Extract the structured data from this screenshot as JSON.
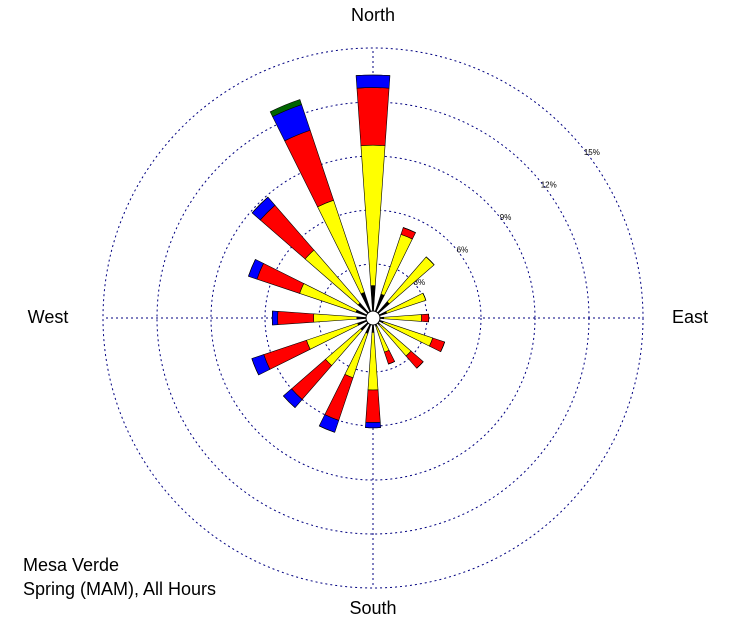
{
  "chart_data": {
    "type": "windrose",
    "categories": [
      "North",
      null,
      null,
      null,
      "East",
      null,
      null,
      null,
      "South",
      null,
      null,
      null,
      "West",
      null,
      null,
      null
    ],
    "series": [
      {
        "color": "#000000",
        "values": [
          1.8,
          1.4,
          1.2,
          0.8,
          0.6,
          0.6,
          0.5,
          0.5,
          0.8,
          0.9,
          0.9,
          0.9,
          0.9,
          1.0,
          1.1,
          1.5
        ]
      },
      {
        "color": "#ffff00",
        "values": [
          7.8,
          3.5,
          3.3,
          2.3,
          2.1,
          2.9,
          2.3,
          1.5,
          3.2,
          2.6,
          2.6,
          3.0,
          2.4,
          3.3,
          3.9,
          5.4
        ]
      },
      {
        "color": "#ff0000",
        "values": [
          3.2,
          0.4,
          0,
          0,
          0.4,
          0.7,
          0.9,
          0.7,
          1.8,
          2.5,
          2.5,
          2.5,
          2.0,
          2.5,
          3.3,
          4.1
        ]
      },
      {
        "color": "#0000ff",
        "values": [
          0.7,
          0,
          0,
          0,
          0,
          0,
          0,
          0,
          0.3,
          0.7,
          0.6,
          0.7,
          0.3,
          0.5,
          0.6,
          1.5
        ]
      },
      {
        "color": "#006400",
        "values": [
          0,
          0,
          0,
          0,
          0,
          0,
          0,
          0,
          0,
          0,
          0,
          0,
          0,
          0,
          0,
          0.3
        ]
      }
    ],
    "ylim": [
      0,
      15
    ],
    "yticks": [
      {
        "value": 3,
        "label": "3%"
      },
      {
        "value": 6,
        "label": "6%"
      },
      {
        "value": 9,
        "label": "9%"
      },
      {
        "value": 12,
        "label": "12%"
      },
      {
        "value": 15,
        "label": "15%"
      }
    ],
    "grid": true,
    "annotations": [
      "Mesa Verde",
      "Spring (MAM), All Hours"
    ]
  }
}
